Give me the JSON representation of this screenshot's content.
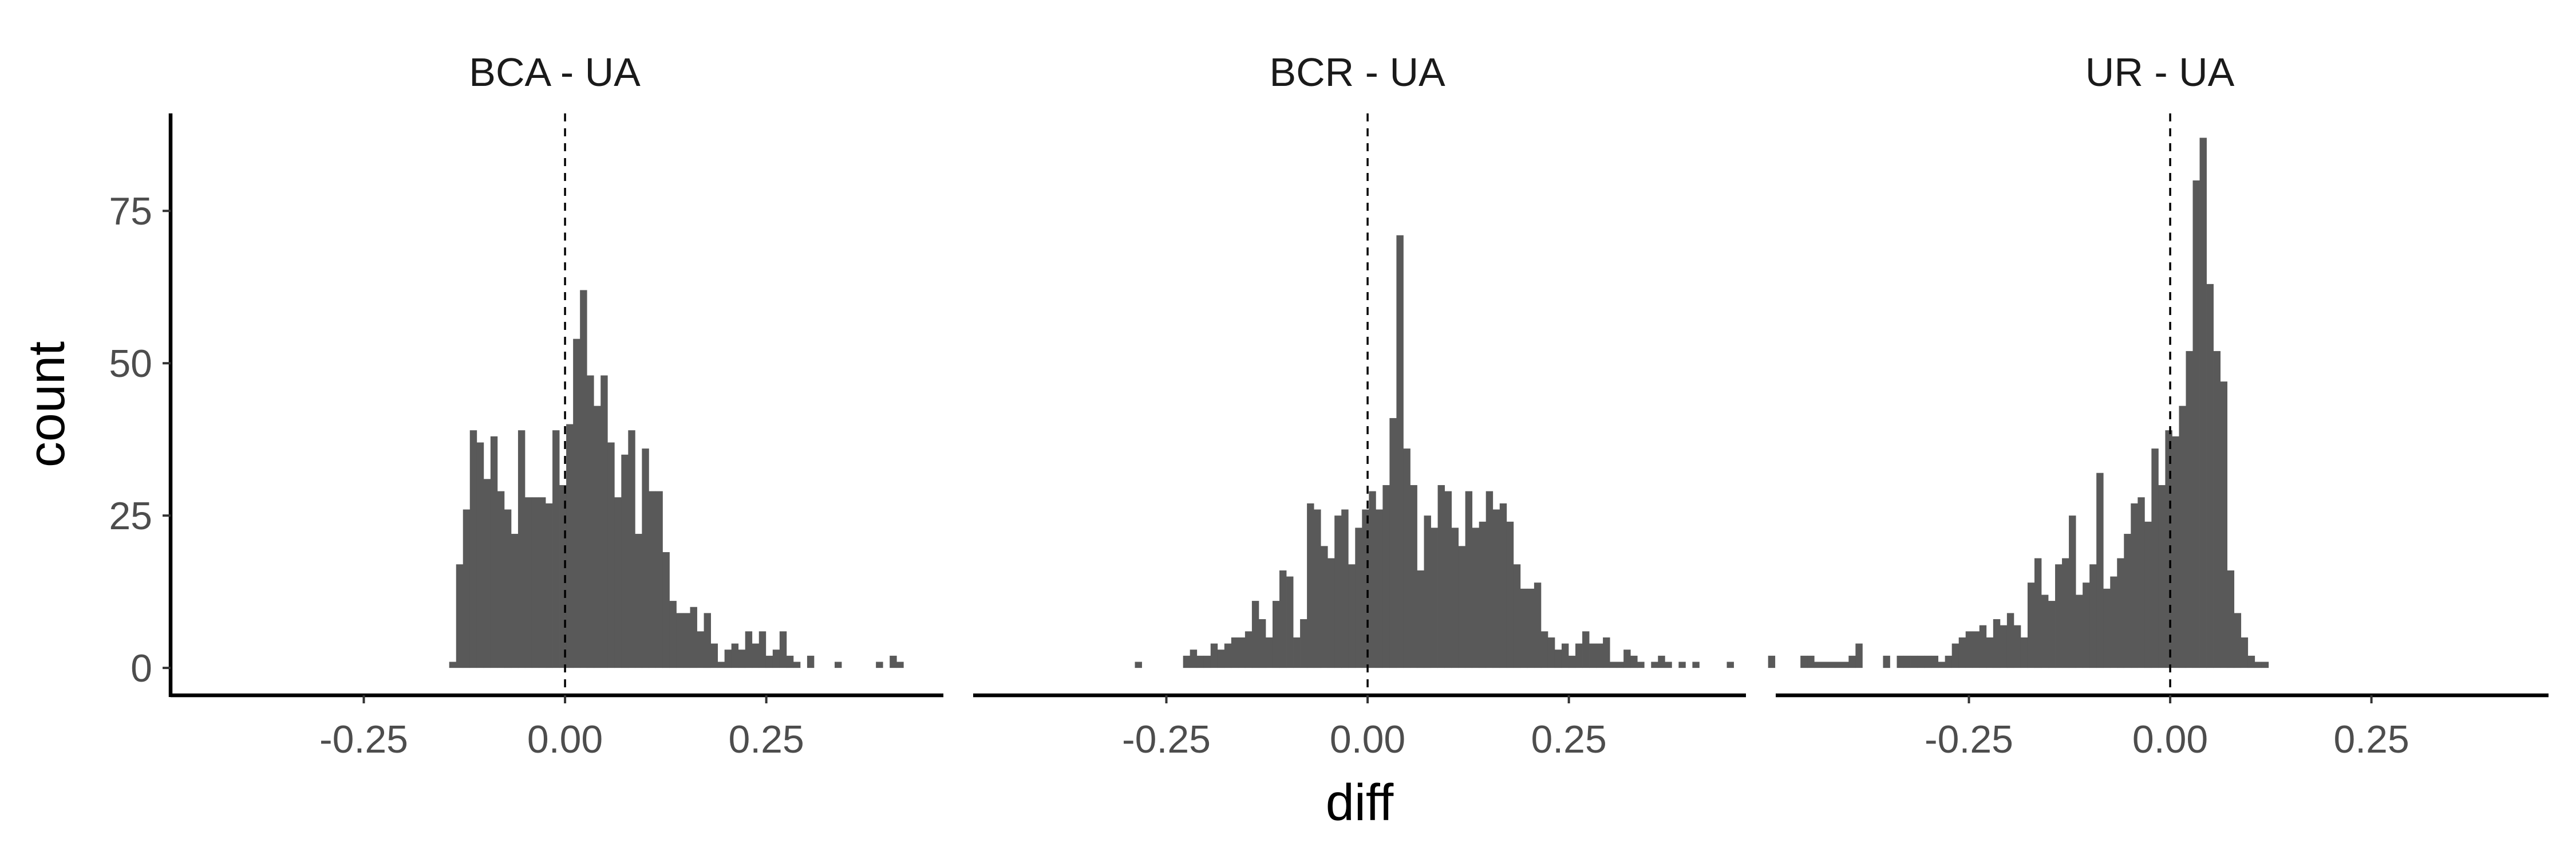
{
  "chart_data": {
    "type": "bar",
    "layout": "faceted histograms (3 panels, shared axes)",
    "xlabel": "diff",
    "ylabel": "count",
    "xlim": [
      -0.49,
      0.47
    ],
    "ylim": [
      -4.5,
      91
    ],
    "x_ticks": [
      -0.25,
      0.0,
      0.25
    ],
    "x_tick_labels": [
      "-0.25",
      "0.00",
      "0.25"
    ],
    "y_ticks": [
      0,
      25,
      50,
      75
    ],
    "y_tick_labels": [
      "0",
      "25",
      "50",
      "75"
    ],
    "bin_width": 0.00855,
    "reference_line": {
      "x": 0,
      "style": "dashed",
      "color": "#000000"
    },
    "bar_color": "#595959",
    "grid": false,
    "legend": "none",
    "panels": [
      {
        "title": "BCA - UA",
        "bins_start": -0.1439,
        "counts": [
          1,
          17,
          26,
          39,
          37,
          31,
          38,
          29,
          26,
          22,
          39,
          28,
          28,
          28,
          27,
          39,
          30,
          40,
          54,
          62,
          48,
          43,
          48,
          37,
          28,
          35,
          39,
          22,
          36,
          29,
          29,
          19,
          11,
          9,
          9,
          10,
          6,
          9,
          4,
          1,
          3,
          4,
          3,
          6,
          4,
          6,
          2,
          3,
          6,
          2,
          1,
          0,
          2,
          0,
          0,
          0,
          1,
          0,
          0,
          0,
          0,
          0,
          1,
          0,
          2,
          1
        ]
      },
      {
        "title": "BCR - UA",
        "bins_start": -0.2891,
        "counts": [
          1,
          0,
          0,
          0,
          0,
          0,
          0,
          2,
          3,
          2,
          2,
          4,
          3,
          4,
          5,
          5,
          6,
          11,
          8,
          5,
          11,
          16,
          15,
          5,
          8,
          27,
          26,
          20,
          18,
          25,
          26,
          17,
          23,
          26,
          29,
          26,
          30,
          41,
          71,
          36,
          30,
          16,
          25,
          23,
          30,
          29,
          23,
          20,
          29,
          23,
          24,
          29,
          26,
          27,
          24,
          17,
          13,
          13,
          14,
          6,
          5,
          3,
          4,
          2,
          4,
          6,
          4,
          4,
          5,
          1,
          1,
          3,
          2,
          1,
          0,
          1,
          2,
          1,
          0,
          1,
          0,
          1,
          0,
          0,
          0,
          0,
          1,
          0,
          0,
          0,
          0,
          0,
          2,
          0
        ]
      },
      {
        "title": "UR - UA",
        "bins_start": -0.4593,
        "counts": [
          2,
          2,
          1,
          1,
          1,
          1,
          1,
          2,
          4,
          0,
          0,
          0,
          2,
          0,
          2,
          2,
          2,
          2,
          2,
          2,
          1,
          2,
          4,
          5,
          6,
          6,
          7,
          5,
          8,
          7,
          9,
          7,
          5,
          14,
          18,
          12,
          11,
          17,
          18,
          25,
          12,
          14,
          17,
          32,
          13,
          15,
          18,
          22,
          27,
          28,
          24,
          36,
          30,
          39,
          38,
          43,
          52,
          80,
          87,
          63,
          52,
          47,
          16,
          9,
          5,
          2,
          1,
          1
        ]
      }
    ]
  }
}
